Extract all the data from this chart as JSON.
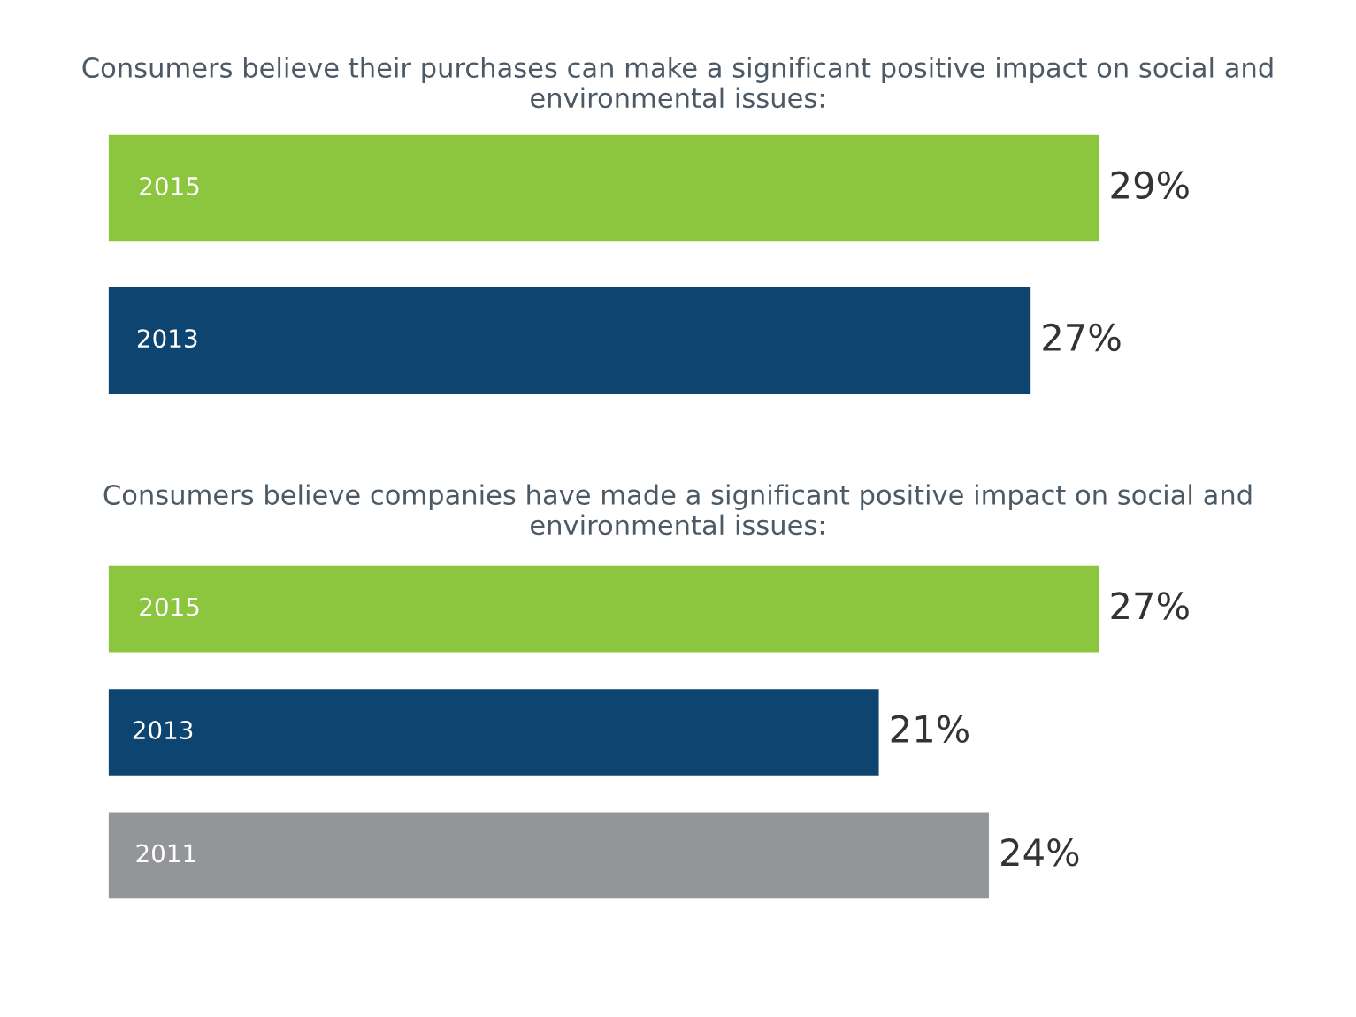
{
  "chart_data": [
    {
      "type": "bar",
      "orientation": "horizontal",
      "title": "Consumers believe their purchases can make a significant positive impact on social and environmental issues:",
      "categories": [
        "2015",
        "2013"
      ],
      "values": [
        29,
        27
      ],
      "colors": [
        "#8cc63f",
        "#0e4470"
      ],
      "value_labels": [
        "29%",
        "27%"
      ]
    },
    {
      "type": "bar",
      "orientation": "horizontal",
      "title": "Consumers believe companies have made a significant positive impact on social and environmental issues:",
      "categories": [
        "2015",
        "2013",
        "2011"
      ],
      "values": [
        27,
        21,
        24
      ],
      "colors": [
        "#8cc63f",
        "#0e4470",
        "#939598"
      ],
      "value_labels": [
        "27%",
        "21%",
        "24%"
      ]
    }
  ]
}
